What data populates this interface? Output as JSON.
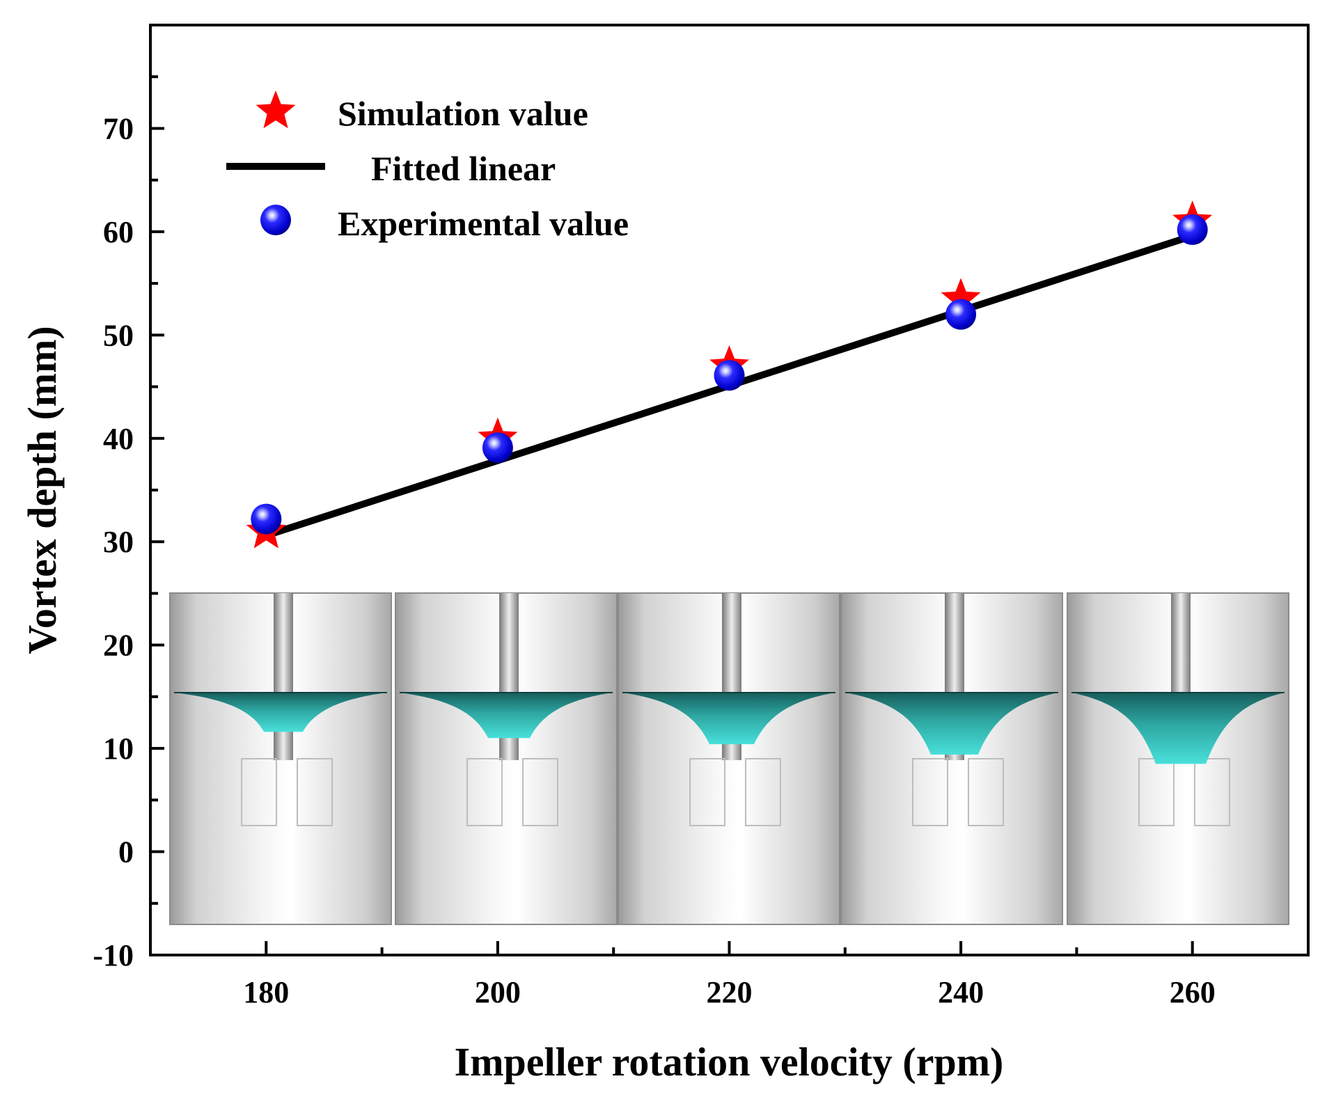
{
  "chart_data": {
    "type": "scatter",
    "title": "",
    "xlabel": "Impeller rotation velocity (rpm)",
    "ylabel": "Vortex depth (mm)",
    "xlim": [
      170,
      270
    ],
    "ylim": [
      -10,
      80
    ],
    "x_ticks": [
      180,
      200,
      220,
      240,
      260
    ],
    "y_ticks": [
      -10,
      0,
      10,
      20,
      30,
      40,
      50,
      60,
      70
    ],
    "x_tick_labels": [
      "180",
      "200",
      "220",
      "240",
      "260"
    ],
    "y_tick_labels": [
      "-10",
      "0",
      "10",
      "20",
      "30",
      "40",
      "50",
      "60",
      "70"
    ],
    "legend_position": "top-left",
    "series": [
      {
        "name": "Simulation value",
        "marker": "star",
        "color": "#ff0000",
        "x": [
          180,
          200,
          220,
          240,
          260
        ],
        "values": [
          31,
          40,
          47,
          53.5,
          61
        ]
      },
      {
        "name": "Fitted linear",
        "marker": "line",
        "color": "#000000",
        "x": [
          180,
          260
        ],
        "values": [
          30.6,
          59.6
        ]
      },
      {
        "name": "Experimental value",
        "marker": "sphere",
        "color": "#1010ee",
        "x": [
          180,
          200,
          220,
          240,
          260
        ],
        "values": [
          32.2,
          39.1,
          46.1,
          52.0,
          60.2
        ]
      }
    ],
    "inset": {
      "description": "vortex surface renders per rotation speed",
      "speeds": [
        180,
        200,
        220,
        240,
        260
      ],
      "vortex_bottom_depth_scale": [
        11.6,
        11.0,
        10.4,
        9.4,
        8.5
      ],
      "liquid_color": "#30b9b3"
    }
  }
}
